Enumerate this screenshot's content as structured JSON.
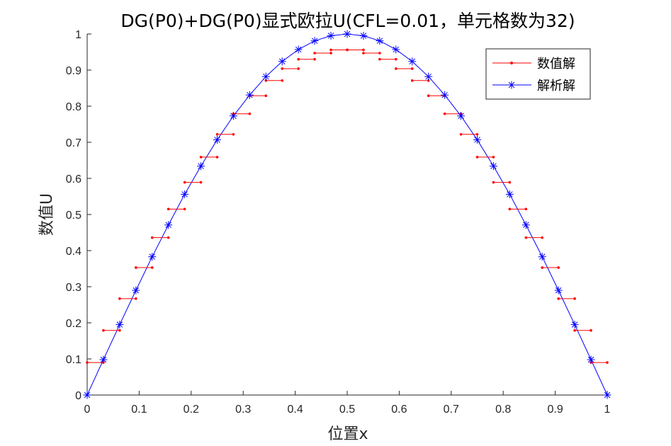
{
  "chart_data": {
    "type": "line",
    "title": "DG(P0)+DG(P0)显式欧拉U(CFL=0.01，单元格数为32)",
    "xlabel": "位置x",
    "ylabel": "数值U",
    "xlim": [
      0,
      1
    ],
    "ylim": [
      0,
      1
    ],
    "x_ticks": [
      "0",
      "0.1",
      "0.2",
      "0.3",
      "0.4",
      "0.5",
      "0.6",
      "0.7",
      "0.8",
      "0.9",
      "1"
    ],
    "y_ticks": [
      "0",
      "0.1",
      "0.2",
      "0.3",
      "0.4",
      "0.5",
      "0.6",
      "0.7",
      "0.8",
      "0.9",
      "1"
    ],
    "grid": false,
    "legend_position": "top-right",
    "series": [
      {
        "name": "数值解",
        "color": "#ff0000",
        "marker": "dot",
        "style": "piecewise-constant",
        "cells": 32,
        "values": [
          0.09,
          0.179,
          0.267,
          0.353,
          0.436,
          0.515,
          0.589,
          0.659,
          0.722,
          0.779,
          0.829,
          0.871,
          0.904,
          0.93,
          0.947,
          0.956,
          0.956,
          0.947,
          0.93,
          0.904,
          0.871,
          0.829,
          0.779,
          0.722,
          0.659,
          0.589,
          0.515,
          0.436,
          0.353,
          0.267,
          0.179,
          0.09
        ]
      },
      {
        "name": "解析解",
        "color": "#0000ff",
        "marker": "asterisk",
        "x": [
          0,
          0.03125,
          0.0625,
          0.09375,
          0.125,
          0.15625,
          0.1875,
          0.21875,
          0.25,
          0.28125,
          0.3125,
          0.34375,
          0.375,
          0.40625,
          0.4375,
          0.46875,
          0.5,
          0.53125,
          0.5625,
          0.59375,
          0.625,
          0.65625,
          0.6875,
          0.71875,
          0.75,
          0.78125,
          0.8125,
          0.84375,
          0.875,
          0.90625,
          0.9375,
          0.96875,
          1
        ],
        "y": [
          0,
          0.098,
          0.195,
          0.29,
          0.383,
          0.471,
          0.556,
          0.634,
          0.707,
          0.773,
          0.831,
          0.882,
          0.924,
          0.957,
          0.981,
          0.995,
          1.0,
          0.995,
          0.981,
          0.957,
          0.924,
          0.882,
          0.831,
          0.773,
          0.707,
          0.634,
          0.556,
          0.471,
          0.383,
          0.29,
          0.195,
          0.098,
          0
        ]
      }
    ]
  }
}
